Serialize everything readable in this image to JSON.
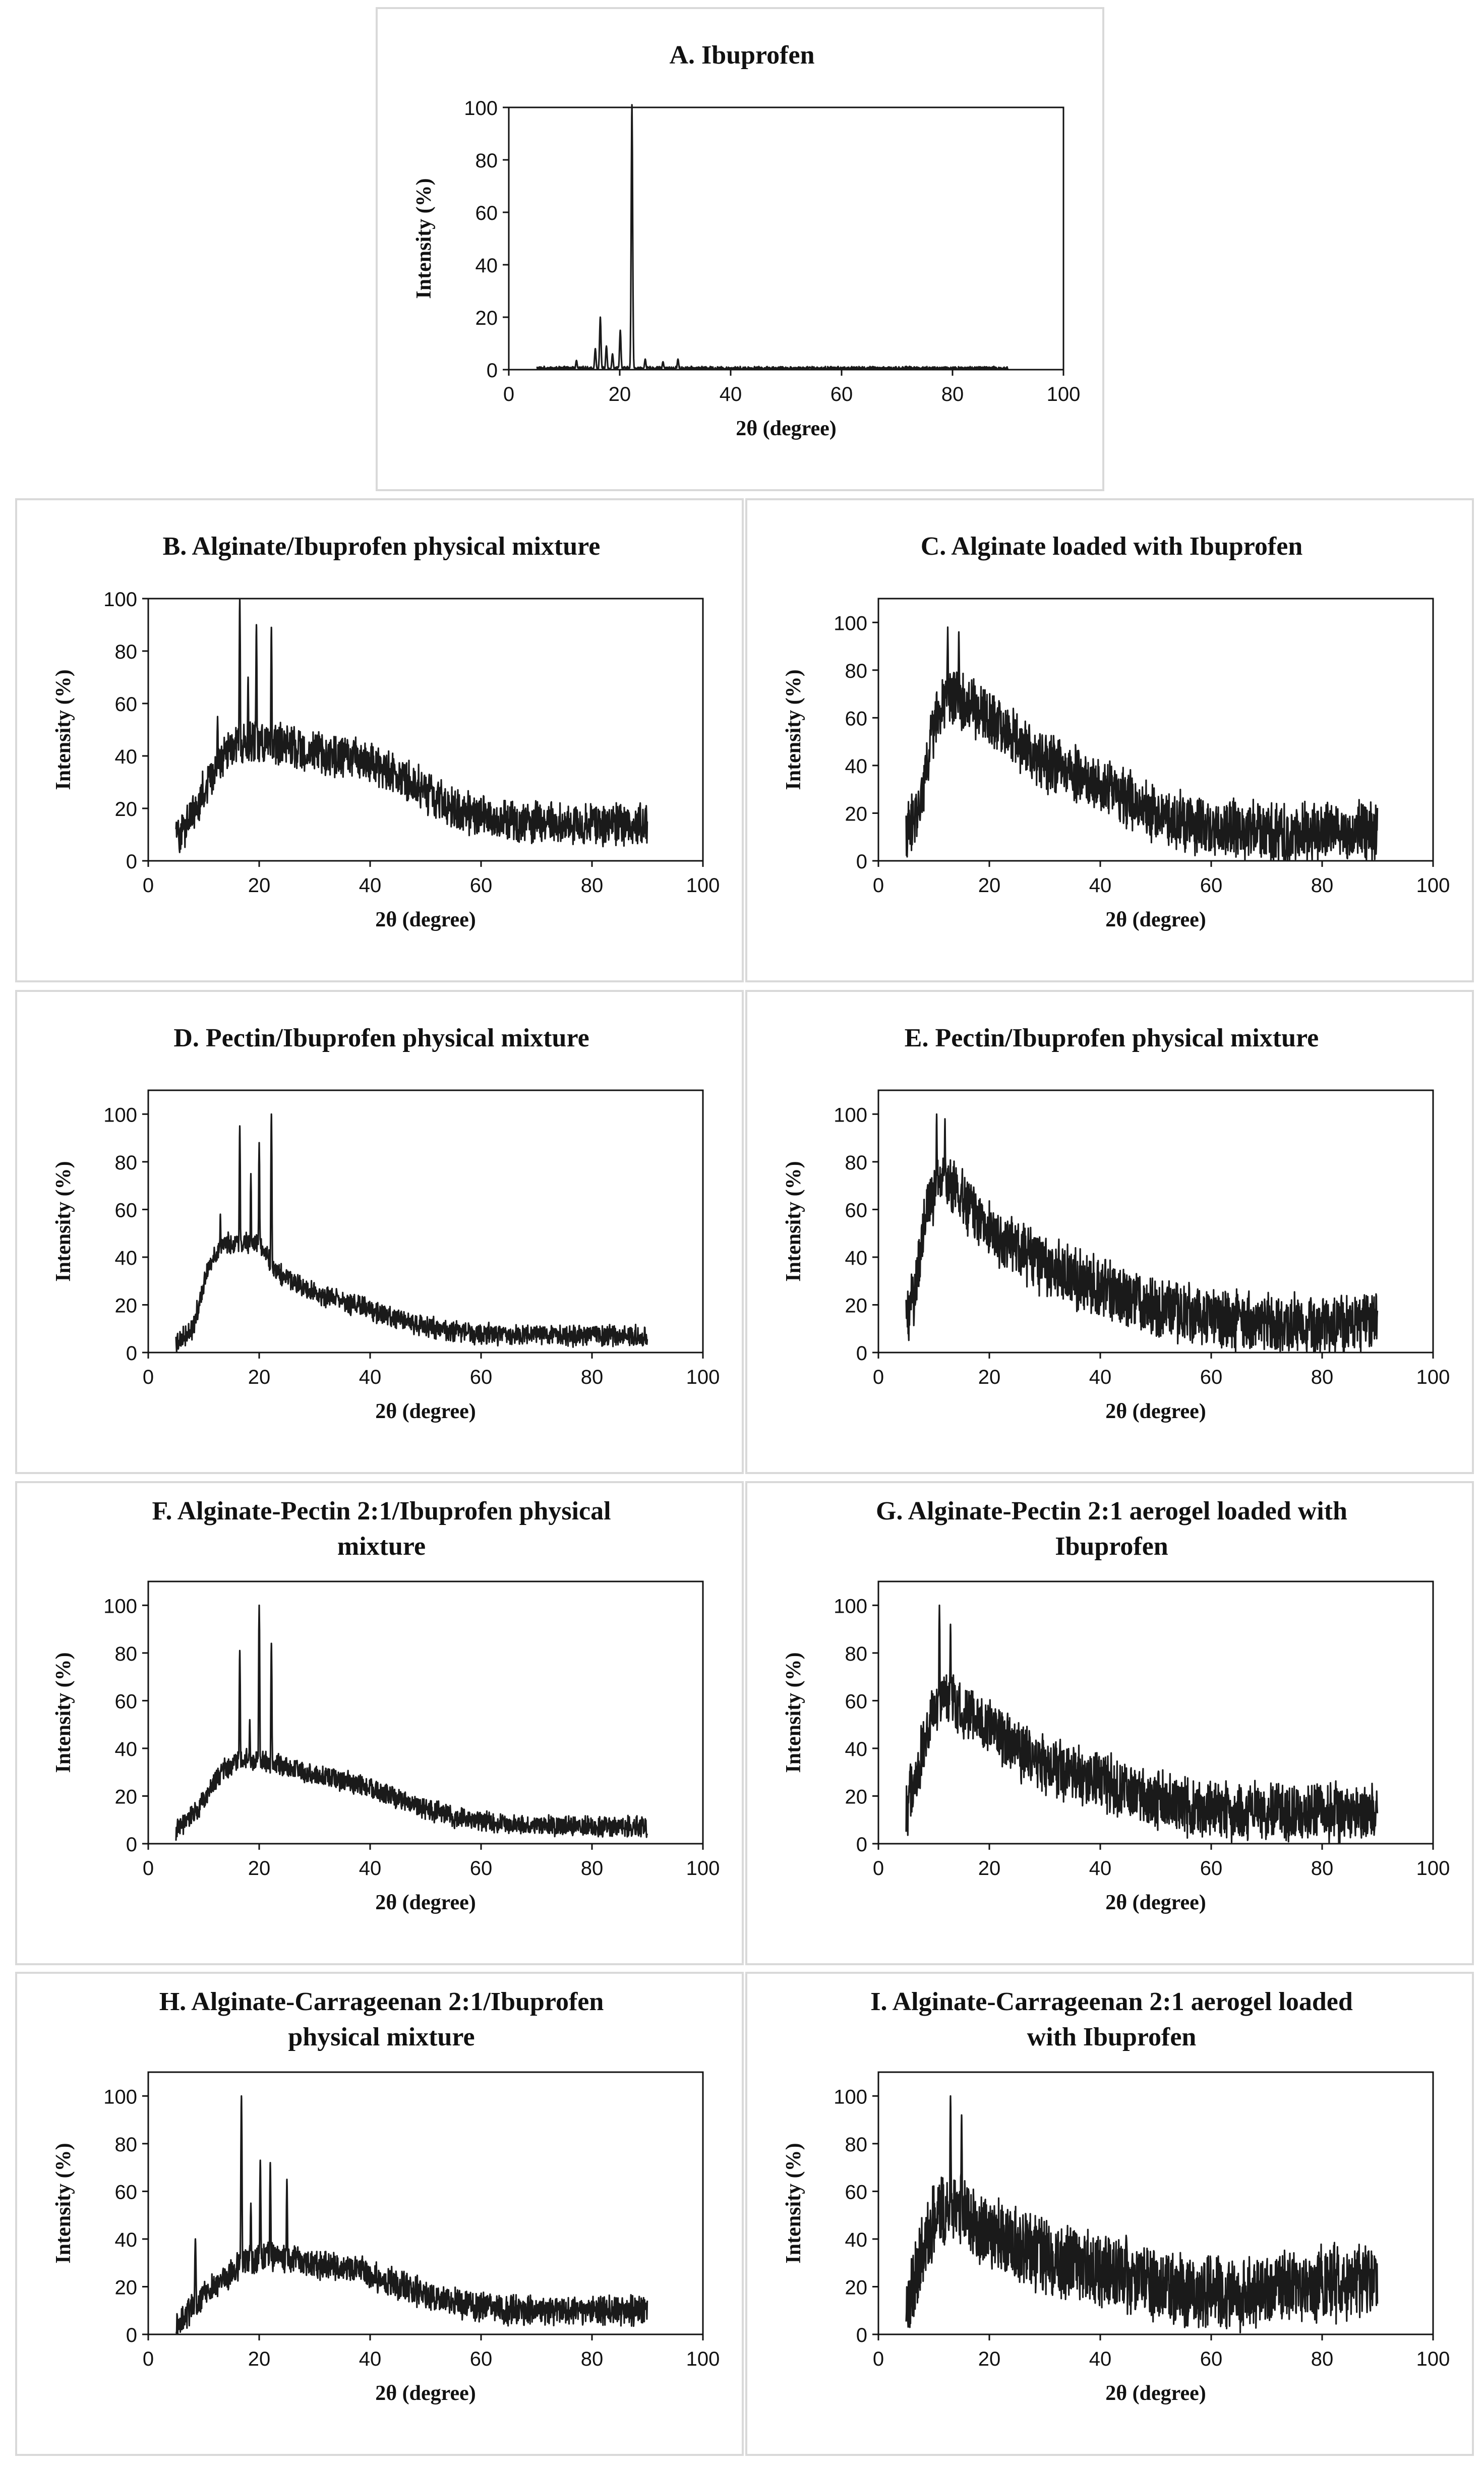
{
  "figure": {
    "common_xlabel": "2θ (degree)",
    "common_ylabel": "Intensity (%)",
    "line_color": "#1a1a1a"
  },
  "chart_data": [
    {
      "id": "A",
      "type": "line",
      "title_lines": [
        "A. Ibuprofen"
      ],
      "xlabel": "2θ (degree)",
      "ylabel": "Intensity (%)",
      "xlim": [
        0,
        100
      ],
      "ylim": [
        0,
        100
      ],
      "xticks": [
        0,
        20,
        40,
        60,
        80,
        100
      ],
      "yticks": [
        0,
        20,
        40,
        60,
        80,
        100
      ],
      "x_range": [
        5,
        90
      ],
      "peaks": [
        [
          12.2,
          3.5
        ],
        [
          15.6,
          8
        ],
        [
          16.5,
          20
        ],
        [
          17.6,
          9
        ],
        [
          18.7,
          6
        ],
        [
          20.1,
          15
        ],
        [
          22.2,
          101
        ],
        [
          24.6,
          4
        ],
        [
          27.8,
          3
        ],
        [
          30.5,
          4
        ]
      ],
      "baseline": {
        "type": "flat",
        "points": [
          [
            5,
            0.5
          ],
          [
            90,
            0.5
          ]
        ]
      },
      "noise": 0.8
    },
    {
      "id": "B",
      "type": "line",
      "title_lines": [
        "B. Alginate/Ibuprofen physical mixture"
      ],
      "xlabel": "2θ (degree)",
      "ylabel": "Intensity (%)",
      "xlim": [
        0,
        100
      ],
      "ylim": [
        0,
        100
      ],
      "xticks": [
        0,
        20,
        40,
        60,
        80,
        100
      ],
      "yticks": [
        0,
        20,
        40,
        60,
        80,
        100
      ],
      "x_range": [
        5,
        90
      ],
      "peaks": [
        [
          16.5,
          100
        ],
        [
          19.5,
          90
        ],
        [
          22.2,
          89
        ],
        [
          18.0,
          70
        ],
        [
          12.5,
          55
        ]
      ],
      "baseline": {
        "type": "points",
        "points": [
          [
            5,
            8
          ],
          [
            8,
            18
          ],
          [
            12,
            35
          ],
          [
            16,
            45
          ],
          [
            20,
            45
          ],
          [
            25,
            44
          ],
          [
            30,
            41
          ],
          [
            38,
            39
          ],
          [
            45,
            33
          ],
          [
            52,
            24
          ],
          [
            58,
            18
          ],
          [
            65,
            15
          ],
          [
            75,
            14
          ],
          [
            90,
            14
          ]
        ]
      },
      "noise": 9
    },
    {
      "id": "C",
      "type": "line",
      "title_lines": [
        "C. Alginate loaded with Ibuprofen"
      ],
      "xlabel": "2θ (degree)",
      "ylabel": "Intensity (%)",
      "xlim": [
        0,
        100
      ],
      "ylim": [
        0,
        110
      ],
      "xticks": [
        0,
        20,
        40,
        60,
        80,
        100
      ],
      "yticks": [
        0,
        20,
        40,
        60,
        80,
        100
      ],
      "x_range": [
        5,
        90
      ],
      "peaks": [
        [
          12.5,
          98
        ],
        [
          14.5,
          96
        ]
      ],
      "baseline": {
        "type": "points",
        "points": [
          [
            5,
            10
          ],
          [
            8,
            28
          ],
          [
            10,
            58
          ],
          [
            13,
            70
          ],
          [
            16,
            66
          ],
          [
            22,
            55
          ],
          [
            30,
            42
          ],
          [
            40,
            33
          ],
          [
            45,
            26
          ],
          [
            52,
            18
          ],
          [
            60,
            14
          ],
          [
            70,
            12
          ],
          [
            90,
            12
          ]
        ]
      },
      "noise": 14
    },
    {
      "id": "D",
      "type": "line",
      "title_lines": [
        "D. Pectin/Ibuprofen physical mixture"
      ],
      "xlabel": "2θ (degree)",
      "ylabel": "Intensity (%)",
      "xlim": [
        0,
        100
      ],
      "ylim": [
        0,
        110
      ],
      "xticks": [
        0,
        20,
        40,
        60,
        80,
        100
      ],
      "yticks": [
        0,
        20,
        40,
        60,
        80,
        100
      ],
      "x_range": [
        5,
        90
      ],
      "peaks": [
        [
          16.5,
          95
        ],
        [
          20.0,
          88
        ],
        [
          22.2,
          100
        ],
        [
          13.0,
          58
        ],
        [
          18.5,
          75
        ]
      ],
      "baseline": {
        "type": "points",
        "points": [
          [
            5,
            4
          ],
          [
            8,
            10
          ],
          [
            11,
            38
          ],
          [
            14,
            46
          ],
          [
            20,
            46
          ],
          [
            23,
            34
          ],
          [
            30,
            25
          ],
          [
            40,
            18
          ],
          [
            48,
            12
          ],
          [
            55,
            9
          ],
          [
            65,
            7
          ],
          [
            90,
            7
          ]
        ]
      },
      "noise": 5
    },
    {
      "id": "E",
      "type": "line",
      "title_lines": [
        "E. Pectin/Ibuprofen physical mixture"
      ],
      "xlabel": "2θ (degree)",
      "ylabel": "Intensity (%)",
      "xlim": [
        0,
        100
      ],
      "ylim": [
        0,
        110
      ],
      "xticks": [
        0,
        20,
        40,
        60,
        80,
        100
      ],
      "yticks": [
        0,
        20,
        40,
        60,
        80,
        100
      ],
      "x_range": [
        5,
        90
      ],
      "peaks": [
        [
          10.5,
          100
        ],
        [
          12.0,
          98
        ]
      ],
      "baseline": {
        "type": "points",
        "points": [
          [
            5,
            12
          ],
          [
            7,
            30
          ],
          [
            9,
            65
          ],
          [
            12,
            72
          ],
          [
            16,
            62
          ],
          [
            22,
            48
          ],
          [
            30,
            36
          ],
          [
            40,
            27
          ],
          [
            50,
            18
          ],
          [
            60,
            14
          ],
          [
            70,
            12
          ],
          [
            90,
            13
          ]
        ]
      },
      "noise": 14
    },
    {
      "id": "F",
      "type": "line",
      "title_lines": [
        "F. Alginate-Pectin 2:1/Ibuprofen physical",
        "mixture"
      ],
      "xlabel": "2θ (degree)",
      "ylabel": "Intensity (%)",
      "xlim": [
        0,
        100
      ],
      "ylim": [
        0,
        110
      ],
      "xticks": [
        0,
        20,
        40,
        60,
        80,
        100
      ],
      "yticks": [
        0,
        20,
        40,
        60,
        80,
        100
      ],
      "x_range": [
        5,
        90
      ],
      "peaks": [
        [
          16.5,
          81
        ],
        [
          20.0,
          100
        ],
        [
          22.2,
          84
        ],
        [
          18.3,
          52
        ]
      ],
      "baseline": {
        "type": "points",
        "points": [
          [
            5,
            5
          ],
          [
            9,
            15
          ],
          [
            13,
            30
          ],
          [
            17,
            36
          ],
          [
            22,
            34
          ],
          [
            28,
            30
          ],
          [
            38,
            25
          ],
          [
            46,
            18
          ],
          [
            55,
            11
          ],
          [
            65,
            8
          ],
          [
            90,
            7
          ]
        ]
      },
      "noise": 5
    },
    {
      "id": "G",
      "type": "line",
      "title_lines": [
        "G. Alginate-Pectin 2:1 aerogel loaded with",
        "Ibuprofen"
      ],
      "xlabel": "2θ (degree)",
      "ylabel": "Intensity (%)",
      "xlim": [
        0,
        100
      ],
      "ylim": [
        0,
        110
      ],
      "xticks": [
        0,
        20,
        40,
        60,
        80,
        100
      ],
      "yticks": [
        0,
        20,
        40,
        60,
        80,
        100
      ],
      "x_range": [
        5,
        90
      ],
      "peaks": [
        [
          11.0,
          100
        ],
        [
          13.0,
          92
        ]
      ],
      "baseline": {
        "type": "points",
        "points": [
          [
            5,
            15
          ],
          [
            7,
            28
          ],
          [
            9,
            52
          ],
          [
            12,
            62
          ],
          [
            16,
            55
          ],
          [
            22,
            44
          ],
          [
            30,
            33
          ],
          [
            40,
            26
          ],
          [
            50,
            18
          ],
          [
            60,
            14
          ],
          [
            70,
            13
          ],
          [
            90,
            13
          ]
        ]
      },
      "noise": 14
    },
    {
      "id": "H",
      "type": "line",
      "title_lines": [
        "H. Alginate-Carrageenan 2:1/Ibuprofen",
        "physical mixture"
      ],
      "xlabel": "2θ (degree)",
      "ylabel": "Intensity (%)",
      "xlim": [
        0,
        100
      ],
      "ylim": [
        0,
        110
      ],
      "xticks": [
        0,
        20,
        40,
        60,
        80,
        100
      ],
      "yticks": [
        0,
        20,
        40,
        60,
        80,
        100
      ],
      "x_range": [
        5,
        90
      ],
      "peaks": [
        [
          8.5,
          40
        ],
        [
          16.8,
          100
        ],
        [
          20.2,
          73
        ],
        [
          22.0,
          72
        ],
        [
          25.0,
          65
        ],
        [
          18.5,
          55
        ]
      ],
      "baseline": {
        "type": "points",
        "points": [
          [
            5,
            4
          ],
          [
            9,
            14
          ],
          [
            13,
            22
          ],
          [
            17,
            30
          ],
          [
            22,
            33
          ],
          [
            28,
            30
          ],
          [
            38,
            27
          ],
          [
            46,
            20
          ],
          [
            55,
            13
          ],
          [
            65,
            10
          ],
          [
            90,
            10
          ]
        ]
      },
      "noise": 7
    },
    {
      "id": "I",
      "type": "line",
      "title_lines": [
        "I. Alginate-Carrageenan 2:1 aerogel loaded",
        "with Ibuprofen"
      ],
      "xlabel": "2θ (degree)",
      "ylabel": "Intensity (%)",
      "xlim": [
        0,
        100
      ],
      "ylim": [
        0,
        110
      ],
      "xticks": [
        0,
        20,
        40,
        60,
        80,
        100
      ],
      "yticks": [
        0,
        20,
        40,
        60,
        80,
        100
      ],
      "x_range": [
        5,
        90
      ],
      "peaks": [
        [
          13.0,
          100
        ],
        [
          15.0,
          92
        ]
      ],
      "baseline": {
        "type": "points",
        "points": [
          [
            5,
            12
          ],
          [
            8,
            35
          ],
          [
            11,
            52
          ],
          [
            14,
            55
          ],
          [
            18,
            46
          ],
          [
            25,
            36
          ],
          [
            35,
            30
          ],
          [
            45,
            24
          ],
          [
            55,
            18
          ],
          [
            65,
            17
          ],
          [
            75,
            20
          ],
          [
            90,
            22
          ]
        ]
      },
      "noise": 18
    }
  ]
}
